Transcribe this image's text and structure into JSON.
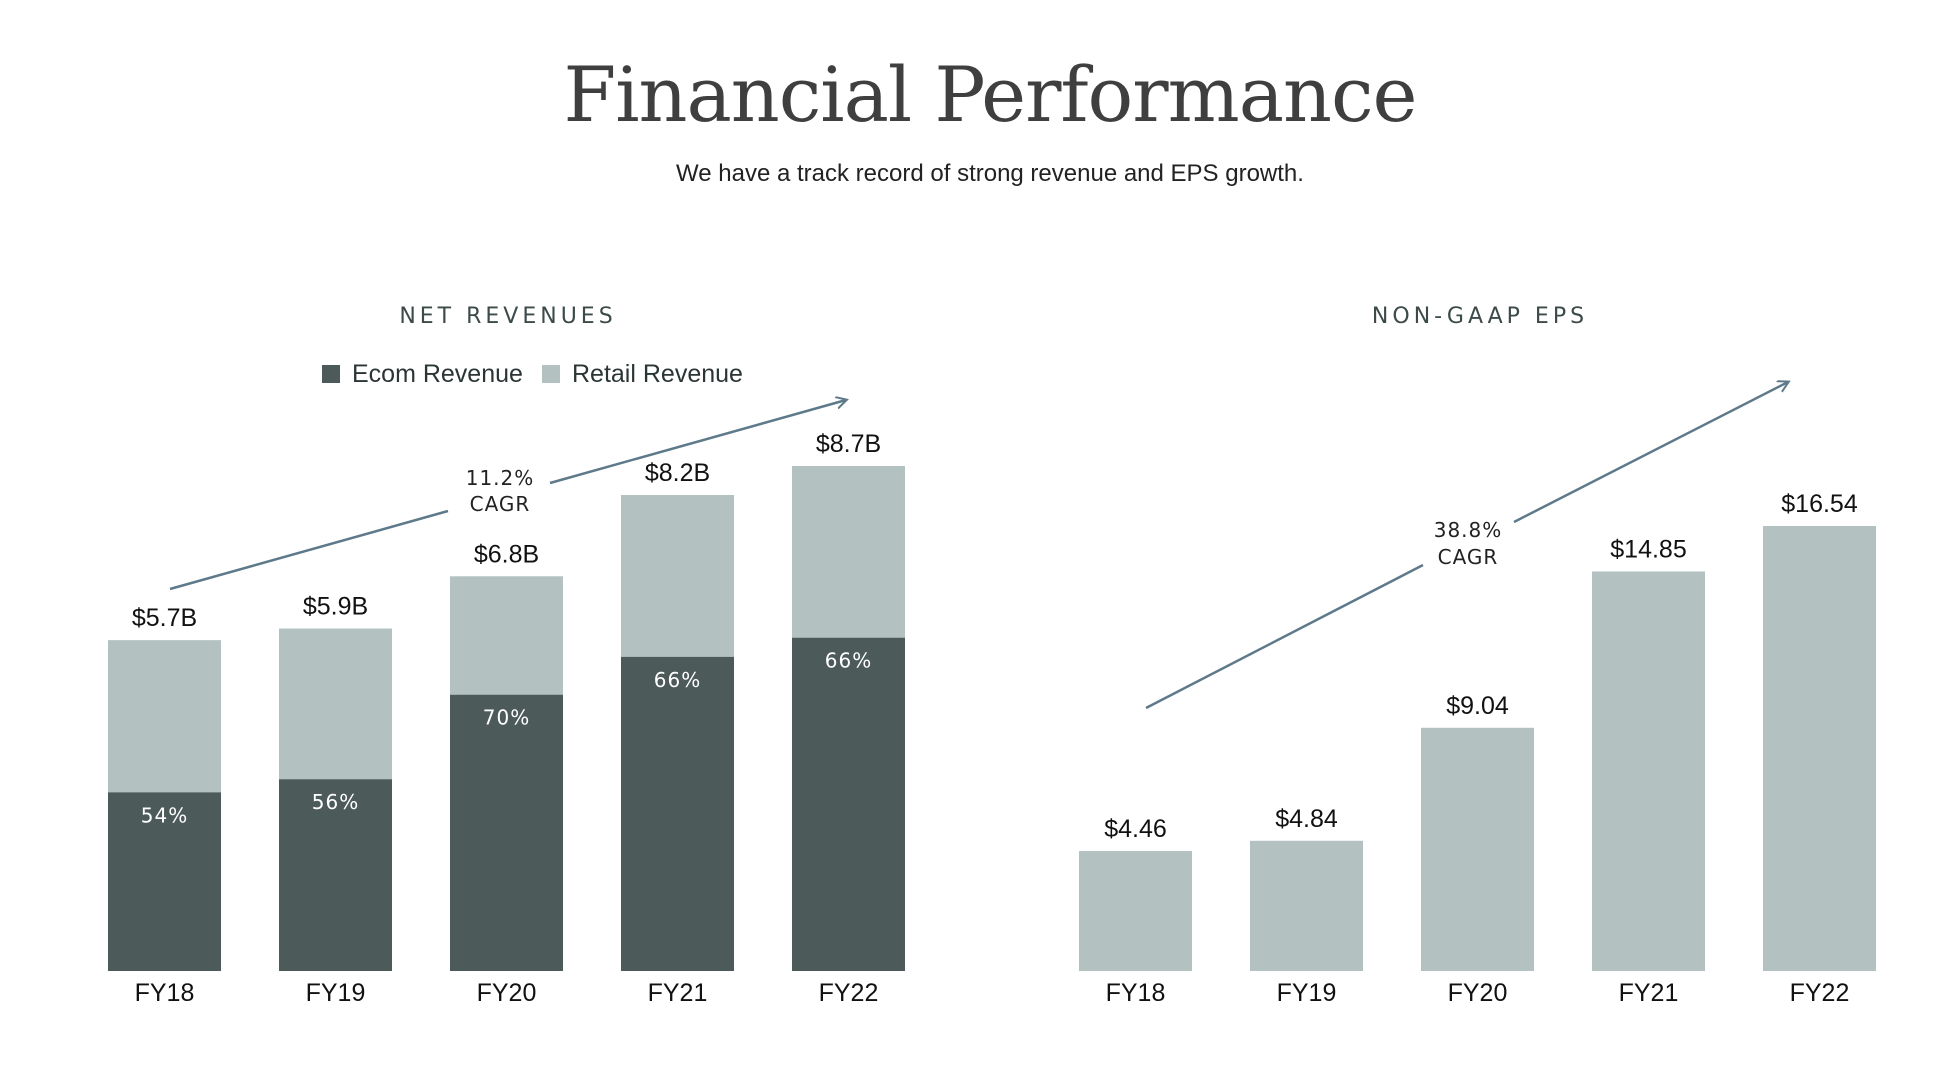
{
  "page": {
    "title": "Financial Performance",
    "subtitle": "We have a track record of strong revenue and EPS growth."
  },
  "colors": {
    "ecom": "#4d5a5a",
    "retail": "#b3c1c1",
    "arrow": "#5e7a8a"
  },
  "chart_data": [
    {
      "type": "bar",
      "stacked": true,
      "title": "NET REVENUES",
      "categories": [
        "FY18",
        "FY19",
        "FY20",
        "FY21",
        "FY22"
      ],
      "totals": [
        5.7,
        5.9,
        6.8,
        8.2,
        8.7
      ],
      "total_labels": [
        "$5.7B",
        "$5.9B",
        "$6.8B",
        "$8.2B",
        "$8.7B"
      ],
      "ecom_share": [
        54,
        56,
        70,
        66,
        66
      ],
      "share_labels": [
        "54%",
        "56%",
        "70%",
        "66%",
        "66%"
      ],
      "series": [
        {
          "name": "Ecom Revenue",
          "color": "#4d5a5a"
        },
        {
          "name": "Retail Revenue",
          "color": "#b3c1c1"
        }
      ],
      "legend": "top-left",
      "cagr": {
        "value": "11.2%",
        "label": "CAGR"
      },
      "ylim": [
        0,
        10
      ]
    },
    {
      "type": "bar",
      "title": "NON-GAAP EPS",
      "categories": [
        "FY18",
        "FY19",
        "FY20",
        "FY21",
        "FY22"
      ],
      "values": [
        4.46,
        4.84,
        9.04,
        14.85,
        16.54
      ],
      "value_labels": [
        "$4.46",
        "$4.84",
        "$9.04",
        "$14.85",
        "$16.54"
      ],
      "color": "#b3c1c1",
      "cagr": {
        "value": "38.8%",
        "label": "CAGR"
      },
      "ylim": [
        0,
        20
      ]
    }
  ]
}
